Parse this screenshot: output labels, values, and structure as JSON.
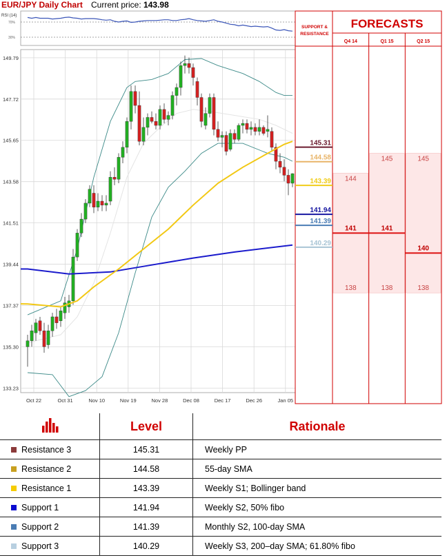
{
  "header": {
    "pair": "EUR/JPY Daily Chart",
    "price_label": "Current price:",
    "price_value": "143.98"
  },
  "colors": {
    "up": "#22b022",
    "down": "#d42020",
    "sma200": "#1a1acc",
    "sma55": "#f2c813",
    "boll": "#3c8a88",
    "rsi": "#3a55b8",
    "forecast_red": "#dd1111",
    "forecast_fill": "#fde7e7"
  },
  "forecasts": {
    "title": "FORECASTS",
    "support_label_1": "SUPPORT &",
    "support_label_2": "RESISTANCE",
    "columns": [
      "Q4 14",
      "Q1 15",
      "Q2 15"
    ]
  },
  "chart_data": {
    "type": "candlestick",
    "title": "EUR/JPY Daily Chart",
    "ylim": [
      133.0,
      150.2
    ],
    "y_ticks": [
      149.79,
      147.72,
      145.65,
      143.58,
      141.51,
      139.44,
      137.37,
      135.3,
      133.23
    ],
    "x_ticks": [
      "Oct 22",
      "Oct 31",
      "Nov 10",
      "Nov 19",
      "Nov 28",
      "Dec 08",
      "Dec 17",
      "Dec 26",
      "Jan 05"
    ],
    "rsi": {
      "label": "RSI (14)",
      "levels": [
        "70%",
        "30%"
      ],
      "values": [
        82,
        80,
        82,
        80,
        80,
        80,
        78,
        79,
        80,
        82,
        83,
        81,
        80,
        78,
        79,
        79,
        79,
        78,
        76,
        75,
        76,
        72,
        70,
        72,
        73,
        69,
        70,
        72,
        73,
        74,
        74,
        74,
        75,
        76,
        76,
        74,
        74,
        76,
        77,
        79,
        76,
        74,
        73,
        72,
        74,
        76,
        72,
        70,
        67,
        64,
        63,
        60,
        62,
        60,
        58,
        59,
        58,
        57,
        58,
        54,
        49,
        48,
        50,
        47,
        46
      ]
    },
    "candles": [
      {
        "o": 135.3,
        "h": 135.9,
        "l": 134.3,
        "c": 135.6
      },
      {
        "o": 135.6,
        "h": 136.4,
        "l": 135.3,
        "c": 136.1
      },
      {
        "o": 136.0,
        "h": 136.7,
        "l": 135.6,
        "c": 136.5
      },
      {
        "o": 136.6,
        "h": 136.8,
        "l": 135.9,
        "c": 136.1
      },
      {
        "o": 136.1,
        "h": 136.5,
        "l": 135.0,
        "c": 135.3
      },
      {
        "o": 135.4,
        "h": 136.4,
        "l": 135.2,
        "c": 136.1
      },
      {
        "o": 136.1,
        "h": 137.0,
        "l": 135.8,
        "c": 136.8
      },
      {
        "o": 136.8,
        "h": 137.2,
        "l": 136.2,
        "c": 136.5
      },
      {
        "o": 136.6,
        "h": 137.3,
        "l": 136.3,
        "c": 137.1
      },
      {
        "o": 137.0,
        "h": 137.8,
        "l": 136.7,
        "c": 137.5
      },
      {
        "o": 137.3,
        "h": 137.9,
        "l": 137.0,
        "c": 137.6
      },
      {
        "o": 137.6,
        "h": 140.2,
        "l": 137.4,
        "c": 139.8
      },
      {
        "o": 139.8,
        "h": 141.2,
        "l": 139.6,
        "c": 141.0
      },
      {
        "o": 141.0,
        "h": 142.0,
        "l": 140.8,
        "c": 141.7
      },
      {
        "o": 141.7,
        "h": 142.7,
        "l": 141.5,
        "c": 142.5
      },
      {
        "o": 142.5,
        "h": 143.4,
        "l": 142.3,
        "c": 143.2
      },
      {
        "o": 143.0,
        "h": 143.4,
        "l": 142.0,
        "c": 142.3
      },
      {
        "o": 142.3,
        "h": 143.0,
        "l": 142.1,
        "c": 142.6
      },
      {
        "o": 142.6,
        "h": 142.9,
        "l": 142.1,
        "c": 142.4
      },
      {
        "o": 142.4,
        "h": 142.9,
        "l": 142.1,
        "c": 142.5
      },
      {
        "o": 142.6,
        "h": 144.1,
        "l": 142.4,
        "c": 143.8
      },
      {
        "o": 143.8,
        "h": 144.3,
        "l": 143.4,
        "c": 143.7
      },
      {
        "o": 143.7,
        "h": 145.0,
        "l": 143.5,
        "c": 144.8
      },
      {
        "o": 144.8,
        "h": 145.6,
        "l": 144.5,
        "c": 145.3
      },
      {
        "o": 145.3,
        "h": 146.8,
        "l": 145.0,
        "c": 146.6
      },
      {
        "o": 146.6,
        "h": 148.4,
        "l": 146.2,
        "c": 148.1
      },
      {
        "o": 148.1,
        "h": 148.4,
        "l": 147.0,
        "c": 147.4
      },
      {
        "o": 147.4,
        "h": 148.1,
        "l": 145.4,
        "c": 145.6
      },
      {
        "o": 145.6,
        "h": 146.8,
        "l": 145.4,
        "c": 146.3
      },
      {
        "o": 146.3,
        "h": 147.0,
        "l": 145.9,
        "c": 146.8
      },
      {
        "o": 146.8,
        "h": 147.1,
        "l": 146.5,
        "c": 146.6
      },
      {
        "o": 146.6,
        "h": 147.0,
        "l": 146.2,
        "c": 146.4
      },
      {
        "o": 146.4,
        "h": 147.4,
        "l": 146.2,
        "c": 147.2
      },
      {
        "o": 147.2,
        "h": 147.5,
        "l": 146.5,
        "c": 146.7
      },
      {
        "o": 146.7,
        "h": 147.1,
        "l": 146.4,
        "c": 146.9
      },
      {
        "o": 146.9,
        "h": 148.1,
        "l": 146.7,
        "c": 147.9
      },
      {
        "o": 147.9,
        "h": 148.5,
        "l": 147.4,
        "c": 148.3
      },
      {
        "o": 148.3,
        "h": 149.6,
        "l": 147.9,
        "c": 149.4
      },
      {
        "o": 149.4,
        "h": 149.9,
        "l": 149.0,
        "c": 149.5
      },
      {
        "o": 149.5,
        "h": 149.8,
        "l": 149.0,
        "c": 149.3
      },
      {
        "o": 149.3,
        "h": 149.5,
        "l": 148.4,
        "c": 148.8
      },
      {
        "o": 148.6,
        "h": 148.8,
        "l": 147.4,
        "c": 147.8
      },
      {
        "o": 147.8,
        "h": 148.0,
        "l": 146.3,
        "c": 146.6
      },
      {
        "o": 146.4,
        "h": 147.3,
        "l": 146.2,
        "c": 147.0
      },
      {
        "o": 147.0,
        "h": 148.0,
        "l": 146.8,
        "c": 147.8
      },
      {
        "o": 147.8,
        "h": 148.0,
        "l": 145.9,
        "c": 146.2
      },
      {
        "o": 146.2,
        "h": 146.6,
        "l": 145.6,
        "c": 145.8
      },
      {
        "o": 145.8,
        "h": 146.1,
        "l": 145.3,
        "c": 145.9
      },
      {
        "o": 145.9,
        "h": 146.1,
        "l": 144.9,
        "c": 145.1
      },
      {
        "o": 145.2,
        "h": 146.2,
        "l": 145.1,
        "c": 146.0
      },
      {
        "o": 146.0,
        "h": 146.2,
        "l": 145.5,
        "c": 145.7
      },
      {
        "o": 145.7,
        "h": 146.5,
        "l": 145.6,
        "c": 146.4
      },
      {
        "o": 146.4,
        "h": 146.7,
        "l": 146.0,
        "c": 146.5
      },
      {
        "o": 146.5,
        "h": 146.7,
        "l": 146.0,
        "c": 146.2
      },
      {
        "o": 146.2,
        "h": 146.6,
        "l": 145.9,
        "c": 146.3
      },
      {
        "o": 146.3,
        "h": 146.5,
        "l": 145.9,
        "c": 146.1
      },
      {
        "o": 146.1,
        "h": 146.7,
        "l": 145.9,
        "c": 146.3
      },
      {
        "o": 146.3,
        "h": 146.4,
        "l": 145.9,
        "c": 146.0
      },
      {
        "o": 146.1,
        "h": 146.9,
        "l": 145.8,
        "c": 146.2
      },
      {
        "o": 146.1,
        "h": 146.3,
        "l": 145.1,
        "c": 145.3
      },
      {
        "o": 145.3,
        "h": 145.5,
        "l": 144.2,
        "c": 144.6
      },
      {
        "o": 144.6,
        "h": 145.0,
        "l": 144.0,
        "c": 144.3
      },
      {
        "o": 144.3,
        "h": 144.7,
        "l": 143.6,
        "c": 143.9
      },
      {
        "o": 143.9,
        "h": 144.2,
        "l": 142.9,
        "c": 143.5
      },
      {
        "o": 143.5,
        "h": 144.0,
        "l": 143.3,
        "c": 143.98
      }
    ],
    "sma200": [
      [
        0,
        139.2
      ],
      [
        10,
        138.95
      ],
      [
        20,
        139.05
      ],
      [
        30,
        139.4
      ],
      [
        40,
        139.75
      ],
      [
        50,
        140.05
      ],
      [
        64,
        140.4
      ]
    ],
    "sma55": [
      [
        0,
        137.45
      ],
      [
        8,
        137.3
      ],
      [
        12,
        137.6
      ],
      [
        16,
        138.3
      ],
      [
        22,
        139.2
      ],
      [
        28,
        140.2
      ],
      [
        34,
        141.2
      ],
      [
        40,
        142.4
      ],
      [
        46,
        143.5
      ],
      [
        52,
        144.3
      ],
      [
        58,
        145.0
      ],
      [
        62,
        145.45
      ],
      [
        64,
        145.6
      ]
    ],
    "boll_upper": [
      [
        0,
        136.9
      ],
      [
        8,
        137.6
      ],
      [
        12,
        140.2
      ],
      [
        16,
        143.8
      ],
      [
        20,
        146.6
      ],
      [
        24,
        148.3
      ],
      [
        26,
        148.6
      ],
      [
        30,
        148.7
      ],
      [
        34,
        149.0
      ],
      [
        38,
        149.7
      ],
      [
        42,
        149.75
      ],
      [
        46,
        149.4
      ],
      [
        52,
        149.0
      ],
      [
        56,
        148.6
      ],
      [
        60,
        148.05
      ],
      [
        62,
        147.9
      ],
      [
        64,
        147.9
      ]
    ],
    "boll_lower": [
      [
        0,
        134.0
      ],
      [
        6,
        133.9
      ],
      [
        10,
        132.8
      ],
      [
        14,
        133.1
      ],
      [
        18,
        133.8
      ],
      [
        22,
        136.0
      ],
      [
        26,
        139.0
      ],
      [
        30,
        141.8
      ],
      [
        34,
        143.3
      ],
      [
        38,
        144.1
      ],
      [
        42,
        145.0
      ],
      [
        46,
        145.5
      ],
      [
        52,
        145.5
      ],
      [
        58,
        145.0
      ],
      [
        62,
        144.8
      ],
      [
        64,
        144.6
      ]
    ],
    "boll_mid": [
      [
        0,
        135.5
      ],
      [
        8,
        135.9
      ],
      [
        12,
        136.8
      ],
      [
        16,
        138.5
      ],
      [
        20,
        141.0
      ],
      [
        24,
        143.8
      ],
      [
        28,
        145.5
      ],
      [
        32,
        146.3
      ],
      [
        36,
        147.0
      ],
      [
        40,
        147.2
      ],
      [
        44,
        147.1
      ],
      [
        50,
        146.9
      ],
      [
        56,
        146.7
      ],
      [
        60,
        146.4
      ],
      [
        64,
        146.0
      ]
    ],
    "levels": [
      {
        "name": "Resistance 3",
        "value": 145.31,
        "color": "#6b1a2e"
      },
      {
        "name": "Resistance 2",
        "value": 144.58,
        "color": "#e8b468"
      },
      {
        "name": "Resistance 1",
        "value": 143.39,
        "color": "#f0cc18"
      },
      {
        "name": "Support 1",
        "value": 141.94,
        "color": "#1414a0"
      },
      {
        "name": "Support 2",
        "value": 141.39,
        "color": "#4a7cb4"
      },
      {
        "name": "Support 3",
        "value": 140.29,
        "color": "#a8c4d4"
      }
    ],
    "forecast_values": [
      {
        "col": 0,
        "value": 144,
        "label": "144",
        "kind": "box"
      },
      {
        "col": 1,
        "value": 145,
        "label": "145",
        "kind": "box"
      },
      {
        "col": 2,
        "value": 145,
        "label": "145",
        "kind": "box"
      },
      {
        "col": 0,
        "value": 141,
        "label": "141",
        "kind": "line"
      },
      {
        "col": 1,
        "value": 141,
        "label": "141",
        "kind": "line"
      },
      {
        "col": 2,
        "value": 140,
        "label": "140",
        "kind": "line"
      },
      {
        "col": 0,
        "value": 138,
        "label": "138",
        "kind": "box"
      },
      {
        "col": 1,
        "value": 138,
        "label": "138",
        "kind": "box"
      },
      {
        "col": 2,
        "value": 138,
        "label": "138",
        "kind": "box"
      }
    ]
  },
  "table": {
    "header_level": "Level",
    "header_rationale": "Rationale",
    "rows": [
      {
        "name": "Resistance 3",
        "level": "145.31",
        "rationale": "Weekly PP",
        "color": "#8b3a3a"
      },
      {
        "name": "Resistance 2",
        "level": "144.58",
        "rationale": "55-day SMA",
        "color": "#c8a020"
      },
      {
        "name": "Resistance 1",
        "level": "143.39",
        "rationale": "Weekly S1; Bollinger band",
        "color": "#f5cc00"
      },
      {
        "name": "Support 1",
        "level": "141.94",
        "rationale": "Weekly S2, 50% fibo",
        "color": "#0a0ad0"
      },
      {
        "name": "Support 2",
        "level": "141.39",
        "rationale": "Monthly S2, 100-day SMA",
        "color": "#4a7cb4"
      },
      {
        "name": "Support 3",
        "level": "140.29",
        "rationale": "Weekly S3, 200–day SMA; 61.80% fibo",
        "color": "#b8cfe0"
      }
    ]
  }
}
